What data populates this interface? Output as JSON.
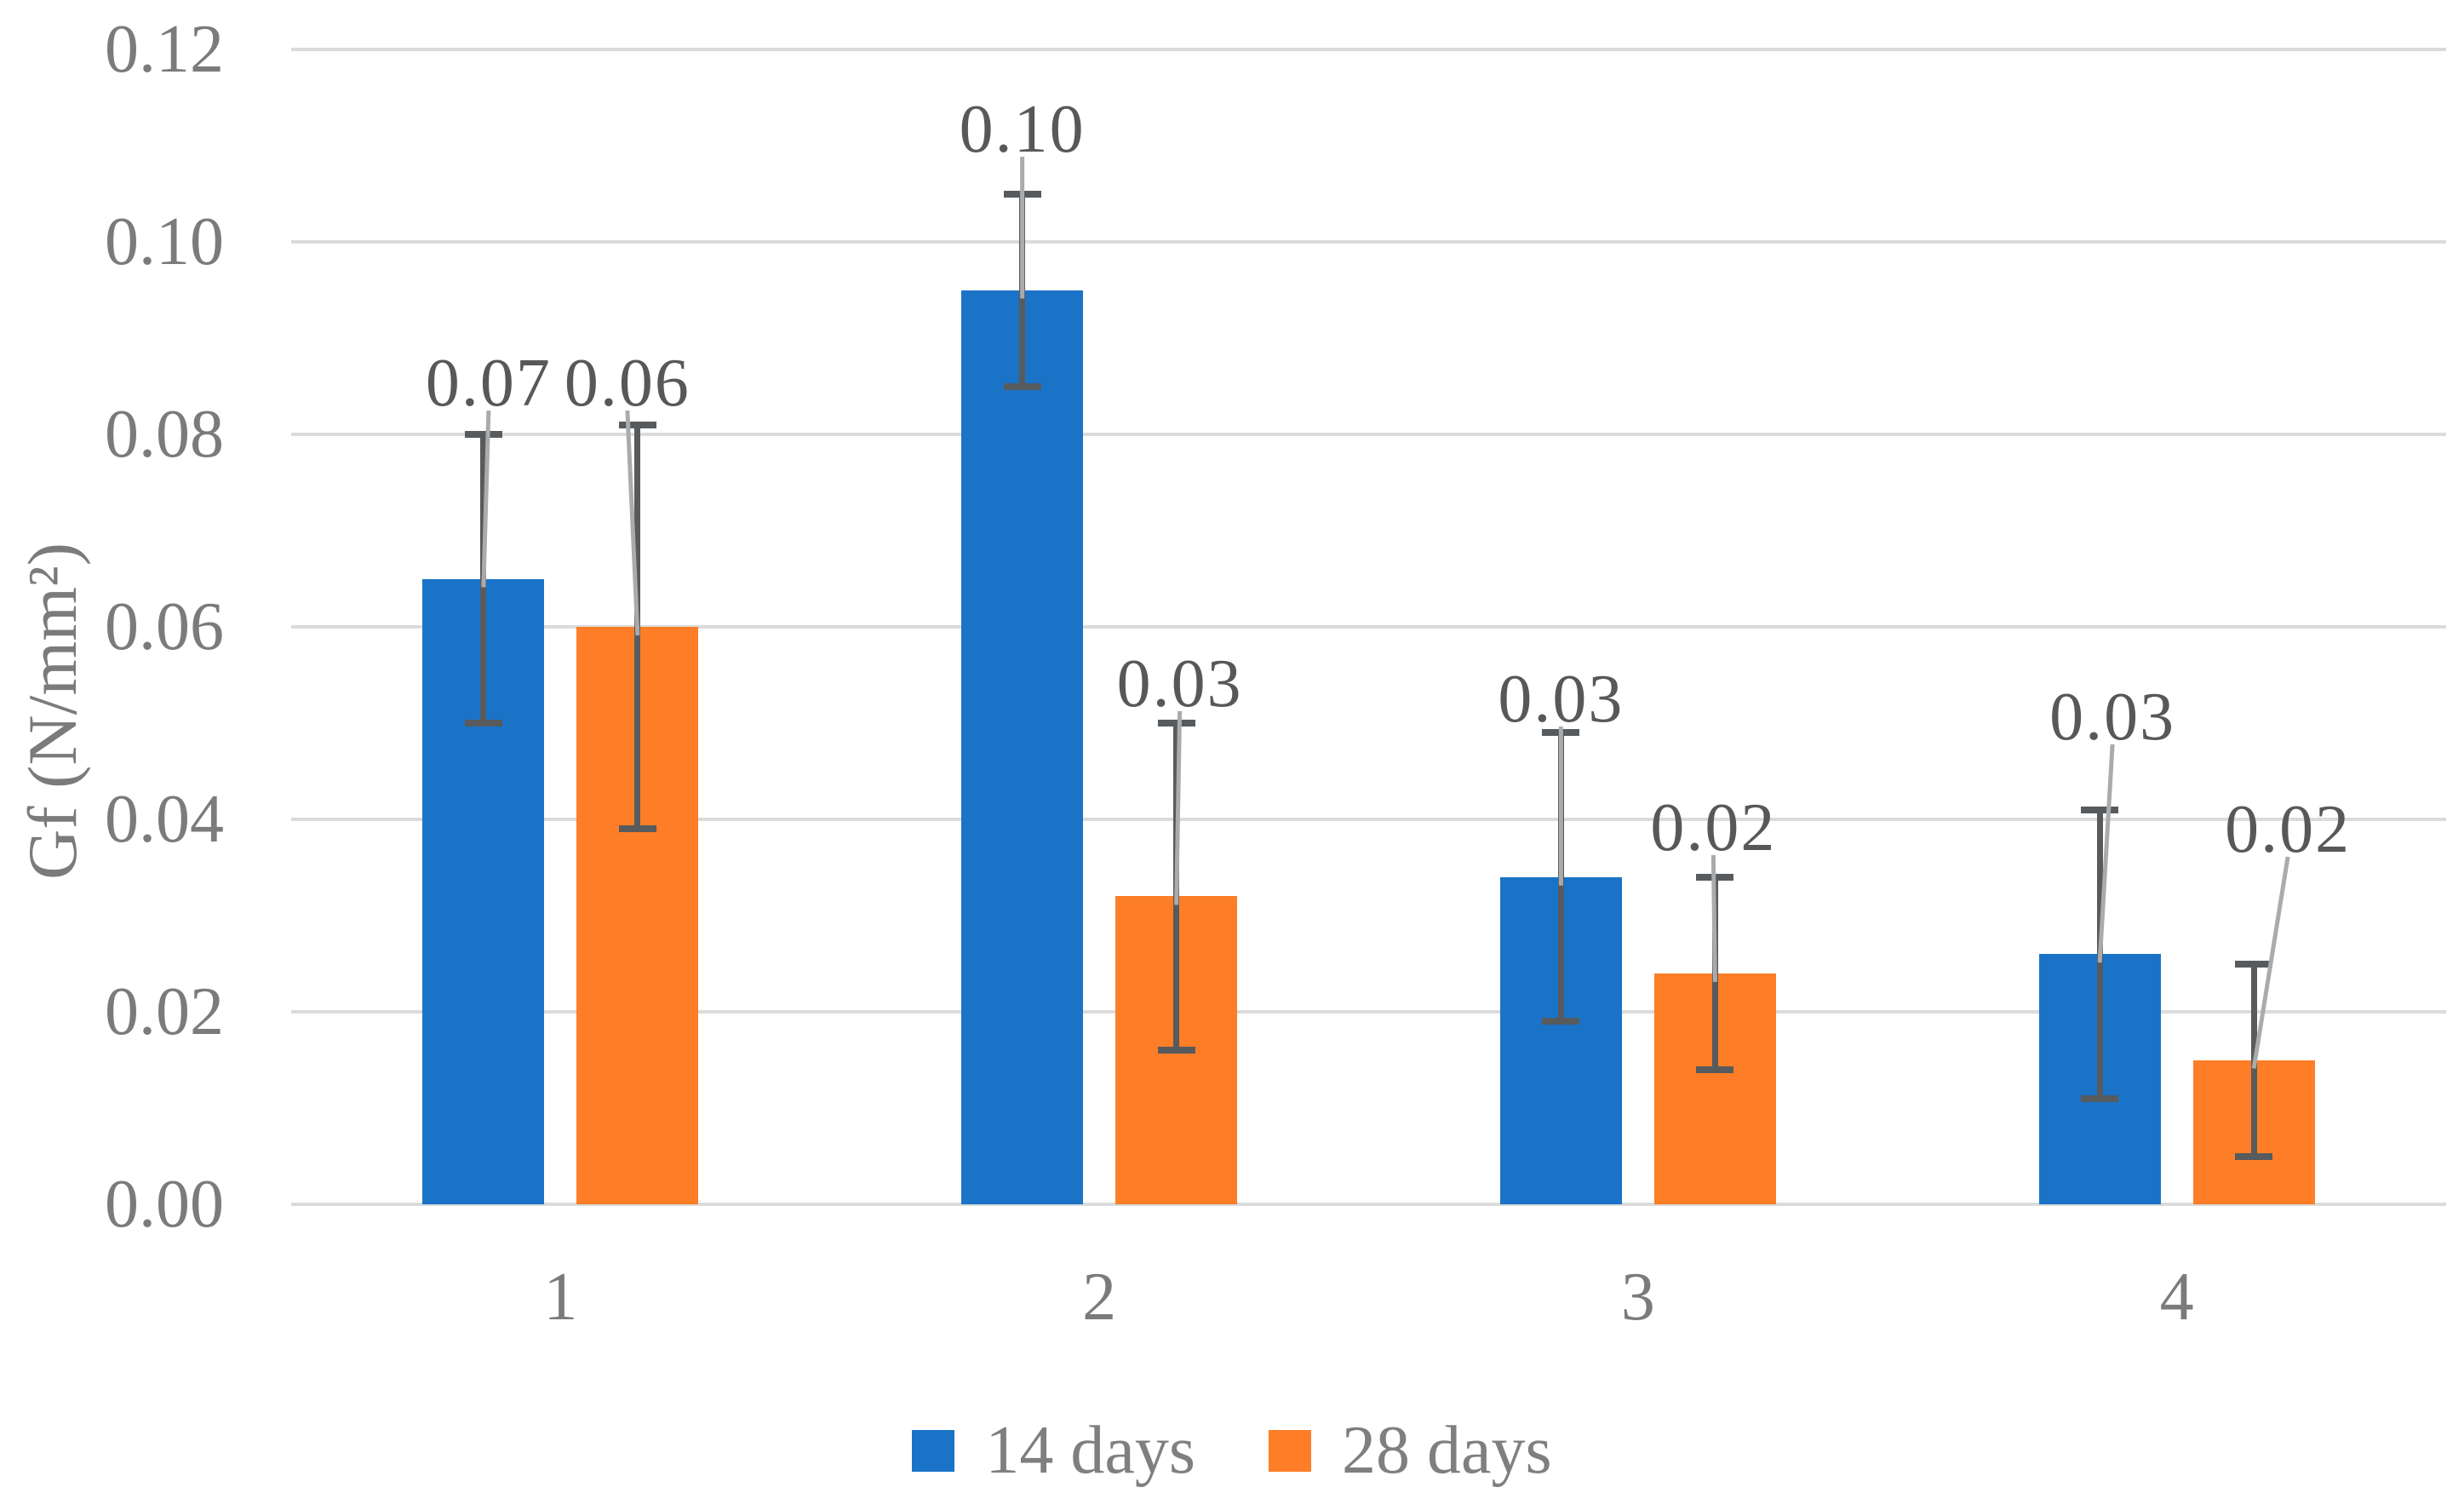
{
  "chart_data": {
    "type": "bar",
    "title": "",
    "xlabel": "",
    "ylabel": "Gf (N/mm²)",
    "categories": [
      "1",
      "2",
      "3",
      "4"
    ],
    "ylim": [
      0,
      0.12
    ],
    "ytick_step": 0.02,
    "ytick_labels": [
      "0.00",
      "0.02",
      "0.04",
      "0.06",
      "0.08",
      "0.10",
      "0.12"
    ],
    "grid": true,
    "legend_position": "bottom-center",
    "series": [
      {
        "name": "14 days",
        "color": "#1B73C8",
        "values": [
          0.065,
          0.095,
          0.034,
          0.026
        ],
        "labels": [
          "0.07",
          "0.10",
          "0.03",
          "0.03"
        ],
        "error_low": [
          0.05,
          0.085,
          0.019,
          0.011
        ],
        "error_high": [
          0.08,
          0.105,
          0.049,
          0.041
        ]
      },
      {
        "name": "28 days",
        "color": "#FD7E27",
        "values": [
          0.06,
          0.032,
          0.024,
          0.015
        ],
        "labels": [
          "0.06",
          "0.03",
          "0.02",
          "0.02"
        ],
        "error_low": [
          0.039,
          0.016,
          0.014,
          0.005
        ],
        "error_high": [
          0.081,
          0.05,
          0.034,
          0.025
        ]
      }
    ],
    "style": {
      "gridline_color": "#DBDBDB",
      "error_bar_color": "#575B5E",
      "leader_line_color": "#ABABAB",
      "axis_text_color": "#7B7B7B",
      "data_label_color": "#585858",
      "legend_text_color": "#7F7F7F"
    }
  }
}
